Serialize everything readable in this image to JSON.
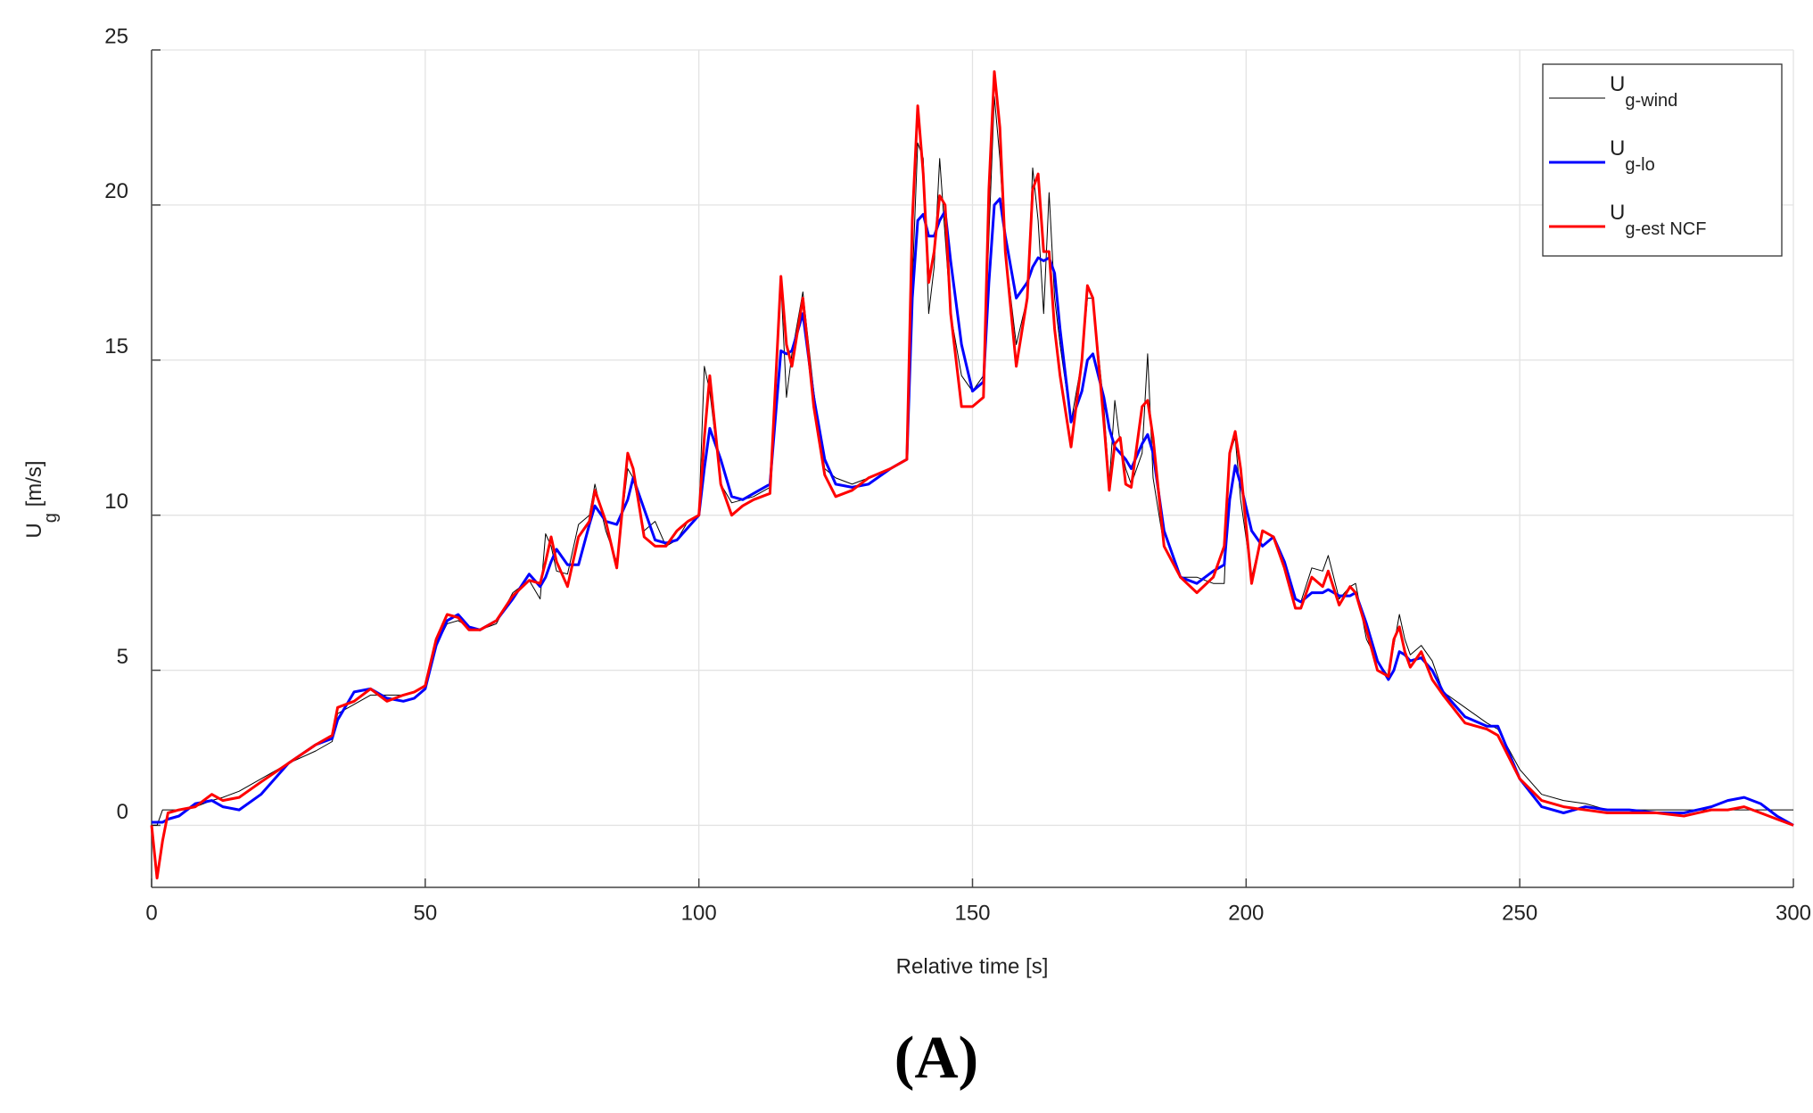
{
  "chart_data": {
    "type": "line",
    "xlabel": "Relative time [s]",
    "ylabel": "Ug [m/s]",
    "caption": "(A)",
    "xlim": [
      0,
      300
    ],
    "ylim": [
      -2,
      25
    ],
    "xticks": [
      0,
      50,
      100,
      150,
      200,
      250,
      300
    ],
    "yticks": [
      0,
      5,
      10,
      15,
      20,
      25
    ],
    "grid": true,
    "legend": "upper right",
    "x": [
      0,
      1,
      2,
      3,
      5,
      8,
      11,
      13,
      16,
      20,
      25,
      30,
      33,
      34,
      37,
      40,
      43,
      46,
      48,
      50,
      52,
      54,
      56,
      58,
      60,
      63,
      66,
      69,
      71,
      72,
      73,
      74,
      76,
      78,
      80,
      81,
      83,
      85,
      87,
      88,
      90,
      92,
      94,
      96,
      98,
      100,
      101,
      102,
      104,
      106,
      108,
      110,
      113,
      115,
      116,
      117,
      119,
      121,
      123,
      125,
      128,
      131,
      135,
      138,
      139,
      140,
      141,
      142,
      143,
      144,
      145,
      146,
      148,
      150,
      152,
      153,
      154,
      155,
      156,
      158,
      160,
      161,
      162,
      163,
      164,
      165,
      166,
      168,
      170,
      171,
      172,
      174,
      175,
      176,
      177,
      178,
      179,
      181,
      182,
      183,
      185,
      188,
      191,
      194,
      196,
      197,
      198,
      199,
      201,
      203,
      205,
      207,
      209,
      210,
      212,
      214,
      215,
      217,
      219,
      220,
      222,
      224,
      226,
      227,
      228,
      229,
      230,
      232,
      234,
      236,
      240,
      244,
      246,
      250,
      254,
      258,
      262,
      266,
      270,
      275,
      280,
      285,
      288,
      291,
      294,
      297,
      300
    ],
    "series": [
      {
        "name": "Ug-wind",
        "color": "#000000",
        "width": 1,
        "values": [
          0,
          0,
          0.5,
          0.5,
          0.5,
          0.6,
          0.8,
          0.9,
          1.1,
          1.5,
          2.0,
          2.4,
          2.7,
          3.6,
          3.9,
          4.2,
          4.2,
          4.2,
          4.3,
          4.5,
          5.8,
          6.5,
          6.6,
          6.4,
          6.3,
          6.5,
          7.5,
          7.9,
          7.3,
          9.4,
          9.0,
          8.2,
          8.1,
          9.7,
          10.0,
          11.0,
          9.5,
          8.5,
          11.5,
          11.2,
          9.5,
          9.8,
          9.0,
          9.2,
          9.8,
          10.0,
          14.8,
          14.0,
          11.0,
          10.4,
          10.5,
          10.6,
          10.9,
          17.5,
          13.8,
          15.2,
          17.2,
          14.0,
          11.5,
          11.2,
          11.0,
          11.2,
          11.5,
          11.8,
          17.5,
          22.0,
          21.5,
          16.5,
          18.0,
          21.5,
          19.0,
          16.5,
          14.5,
          14.0,
          14.5,
          19.0,
          23.5,
          21.5,
          18.5,
          15.5,
          17.0,
          21.2,
          19.5,
          16.5,
          20.4,
          17.0,
          15.5,
          13.0,
          15.0,
          17.0,
          17.0,
          13.5,
          11.0,
          13.7,
          12.3,
          11.5,
          11.0,
          12.0,
          15.2,
          11.2,
          9.0,
          8.0,
          8.0,
          7.8,
          7.8,
          12.0,
          12.5,
          10.5,
          8.0,
          9.5,
          9.3,
          8.3,
          7.3,
          7.2,
          8.3,
          8.2,
          8.7,
          7.3,
          7.7,
          7.8,
          6.0,
          5.3,
          4.8,
          5.8,
          6.8,
          6.0,
          5.5,
          5.8,
          5.3,
          4.3,
          3.8,
          3.3,
          3.1,
          1.8,
          1.0,
          0.8,
          0.7,
          0.5,
          0.5,
          0.5,
          0.5,
          0.5,
          0.5,
          0.5,
          0.5,
          0.5,
          0.5
        ]
      },
      {
        "name": "Ug-lo",
        "color": "#0000ff",
        "width": 3,
        "values": [
          0.1,
          0.1,
          0.1,
          0.2,
          0.3,
          0.7,
          0.8,
          0.6,
          0.5,
          1.0,
          2.0,
          2.6,
          2.8,
          3.4,
          4.3,
          4.4,
          4.1,
          4.0,
          4.1,
          4.4,
          5.8,
          6.6,
          6.8,
          6.4,
          6.3,
          6.6,
          7.3,
          8.1,
          7.7,
          8.0,
          8.5,
          8.9,
          8.4,
          8.4,
          9.7,
          10.3,
          9.8,
          9.7,
          10.5,
          11.2,
          10.2,
          9.2,
          9.1,
          9.2,
          9.6,
          10.0,
          11.5,
          12.8,
          11.8,
          10.6,
          10.5,
          10.7,
          11.0,
          15.3,
          15.2,
          15.3,
          16.5,
          13.8,
          11.8,
          11.0,
          10.9,
          11.0,
          11.5,
          11.8,
          17.0,
          19.5,
          19.7,
          19.0,
          19.0,
          19.5,
          19.8,
          18.2,
          15.5,
          14.0,
          14.3,
          17.5,
          20.0,
          20.2,
          19.0,
          17.0,
          17.5,
          18.0,
          18.3,
          18.2,
          18.3,
          17.8,
          16.0,
          13.0,
          14.0,
          15.0,
          15.2,
          13.8,
          12.8,
          12.2,
          12.0,
          11.8,
          11.5,
          12.3,
          12.6,
          12.0,
          9.5,
          8.0,
          7.8,
          8.2,
          8.4,
          10.5,
          11.6,
          11.0,
          9.5,
          9.0,
          9.3,
          8.5,
          7.3,
          7.2,
          7.5,
          7.5,
          7.6,
          7.4,
          7.4,
          7.5,
          6.5,
          5.3,
          4.7,
          5.0,
          5.6,
          5.5,
          5.3,
          5.4,
          5.0,
          4.3,
          3.5,
          3.2,
          3.2,
          1.5,
          0.6,
          0.4,
          0.6,
          0.5,
          0.5,
          0.4,
          0.4,
          0.6,
          0.8,
          0.9,
          0.7,
          0.3,
          0.0
        ]
      },
      {
        "name": "Ug-est NCF",
        "color": "#ff0000",
        "width": 3,
        "values": [
          0,
          -1.7,
          -0.5,
          0.4,
          0.5,
          0.6,
          1.0,
          0.8,
          0.9,
          1.4,
          2.0,
          2.6,
          2.9,
          3.8,
          4.0,
          4.4,
          4.0,
          4.2,
          4.3,
          4.5,
          6.0,
          6.8,
          6.7,
          6.3,
          6.3,
          6.6,
          7.4,
          7.9,
          7.8,
          8.5,
          9.3,
          8.5,
          7.7,
          9.3,
          9.8,
          10.8,
          9.8,
          8.3,
          12.0,
          11.5,
          9.3,
          9.0,
          9.0,
          9.5,
          9.8,
          10.0,
          12.5,
          14.5,
          11.0,
          10.0,
          10.3,
          10.5,
          10.7,
          17.7,
          15.5,
          14.8,
          17.0,
          13.5,
          11.3,
          10.6,
          10.8,
          11.2,
          11.5,
          11.8,
          19.5,
          23.2,
          21.0,
          17.5,
          18.5,
          20.3,
          20.0,
          16.5,
          13.5,
          13.5,
          13.8,
          20.5,
          24.3,
          22.5,
          18.5,
          14.8,
          17.0,
          20.5,
          21.0,
          18.5,
          18.5,
          16.0,
          14.5,
          12.2,
          15.0,
          17.4,
          17.0,
          13.0,
          10.8,
          12.3,
          12.5,
          11.0,
          10.9,
          13.5,
          13.7,
          12.5,
          9.0,
          8.0,
          7.5,
          8.0,
          9.0,
          12.0,
          12.7,
          11.5,
          7.8,
          9.5,
          9.3,
          8.3,
          7.0,
          7.0,
          8.0,
          7.7,
          8.2,
          7.1,
          7.7,
          7.5,
          6.3,
          5.0,
          4.8,
          6.0,
          6.4,
          5.6,
          5.1,
          5.6,
          4.7,
          4.2,
          3.3,
          3.1,
          2.9,
          1.5,
          0.8,
          0.6,
          0.5,
          0.4,
          0.4,
          0.4,
          0.3,
          0.5,
          0.5,
          0.6,
          0.4,
          0.2,
          0.0
        ]
      }
    ]
  }
}
